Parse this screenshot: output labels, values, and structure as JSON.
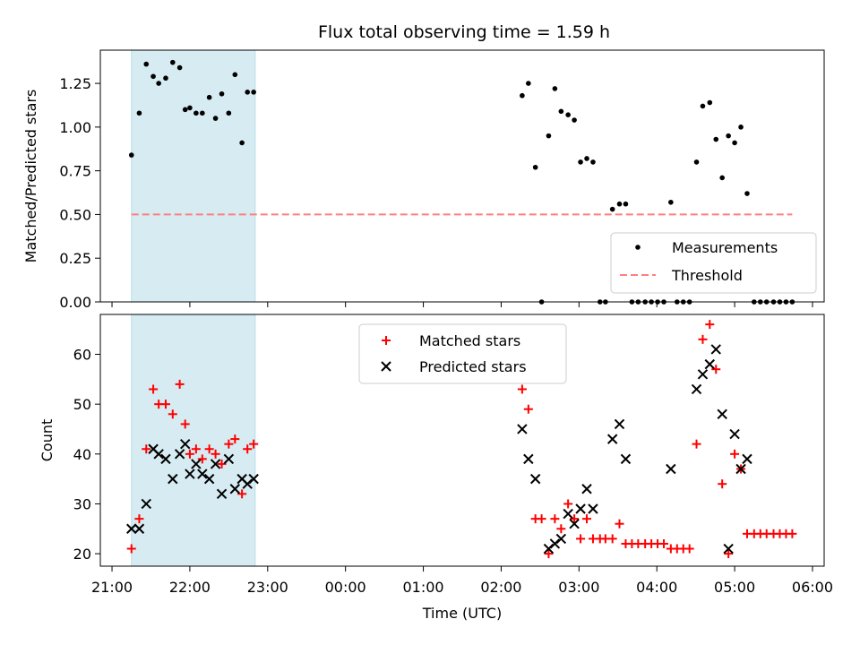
{
  "chart_data": {
    "title": "Flux total observing time = 1.59 h",
    "x_axis": {
      "label": "Time (UTC)",
      "unit": "hours since 21:00",
      "lim": [
        -0.15,
        9.15
      ],
      "ticks": [
        0,
        1,
        2,
        3,
        4,
        5,
        6,
        7,
        8,
        9
      ],
      "tick_labels": [
        "21:00",
        "22:00",
        "23:00",
        "00:00",
        "01:00",
        "02:00",
        "03:00",
        "04:00",
        "05:00",
        "06:00"
      ]
    },
    "shaded_interval": {
      "x0": 0.25,
      "x1": 1.84,
      "color": "#add8e6"
    },
    "subplots": [
      {
        "type": "scatter",
        "ylabel": "Matched/Predicted stars",
        "ylim": [
          0,
          1.44
        ],
        "yticks": [
          0,
          0.25,
          0.5,
          0.75,
          1.0,
          1.25
        ],
        "ytick_labels": [
          "0.00",
          "0.25",
          "0.50",
          "0.75",
          "1.00",
          "1.25"
        ],
        "legend": {
          "placement": "lower-right",
          "entries": [
            "Measurements",
            "Threshold"
          ]
        },
        "series": [
          {
            "name": "Measurements",
            "marker": "dot",
            "color": "#000000",
            "points": [
              [
                0.25,
                0.84
              ],
              [
                0.35,
                1.08
              ],
              [
                0.44,
                1.36
              ],
              [
                0.53,
                1.29
              ],
              [
                0.6,
                1.25
              ],
              [
                0.69,
                1.28
              ],
              [
                0.78,
                1.37
              ],
              [
                0.87,
                1.34
              ],
              [
                0.94,
                1.1
              ],
              [
                1.0,
                1.11
              ],
              [
                1.08,
                1.08
              ],
              [
                1.16,
                1.08
              ],
              [
                1.25,
                1.17
              ],
              [
                1.33,
                1.05
              ],
              [
                1.41,
                1.19
              ],
              [
                1.5,
                1.08
              ],
              [
                1.58,
                1.3
              ],
              [
                1.67,
                0.91
              ],
              [
                1.74,
                1.2
              ],
              [
                1.82,
                1.2
              ],
              [
                5.27,
                1.18
              ],
              [
                5.35,
                1.25
              ],
              [
                5.44,
                0.77
              ],
              [
                5.52,
                0.0
              ],
              [
                5.61,
                0.95
              ],
              [
                5.69,
                1.22
              ],
              [
                5.77,
                1.09
              ],
              [
                5.86,
                1.07
              ],
              [
                5.94,
                1.04
              ],
              [
                6.02,
                0.8
              ],
              [
                6.1,
                0.82
              ],
              [
                6.18,
                0.8
              ],
              [
                6.27,
                0.0
              ],
              [
                6.34,
                0.0
              ],
              [
                6.43,
                0.53
              ],
              [
                6.52,
                0.56
              ],
              [
                6.6,
                0.56
              ],
              [
                6.68,
                0.0
              ],
              [
                6.76,
                0.0
              ],
              [
                6.85,
                0.0
              ],
              [
                6.93,
                0.0
              ],
              [
                7.01,
                0.0
              ],
              [
                7.09,
                0.0
              ],
              [
                7.18,
                0.57
              ],
              [
                7.26,
                0.0
              ],
              [
                7.34,
                0.0
              ],
              [
                7.42,
                0.0
              ],
              [
                7.51,
                0.8
              ],
              [
                7.59,
                1.12
              ],
              [
                7.68,
                1.14
              ],
              [
                7.76,
                0.93
              ],
              [
                7.84,
                0.71
              ],
              [
                7.92,
                0.95
              ],
              [
                8.0,
                0.91
              ],
              [
                8.08,
                1.0
              ],
              [
                8.16,
                0.62
              ],
              [
                8.25,
                0.0
              ],
              [
                8.33,
                0.0
              ],
              [
                8.41,
                0.0
              ],
              [
                8.5,
                0.0
              ],
              [
                8.58,
                0.0
              ],
              [
                8.66,
                0.0
              ],
              [
                8.74,
                0.0
              ]
            ]
          },
          {
            "name": "Threshold",
            "type": "line",
            "style": "dashed",
            "color": "#ff7f7f",
            "points": [
              [
                0.25,
                0.5
              ],
              [
                8.74,
                0.5
              ]
            ]
          }
        ]
      },
      {
        "type": "scatter",
        "ylabel": "Count",
        "ylim": [
          17.5,
          68
        ],
        "yticks": [
          20,
          30,
          40,
          50,
          60
        ],
        "ytick_labels": [
          "20",
          "30",
          "40",
          "50",
          "60"
        ],
        "legend": {
          "placement": "upper-center",
          "entries": [
            "Matched stars",
            "Predicted stars"
          ]
        },
        "series": [
          {
            "name": "Matched stars",
            "marker": "plus",
            "color": "#ff0000",
            "points": [
              [
                0.25,
                21
              ],
              [
                0.35,
                27
              ],
              [
                0.44,
                41
              ],
              [
                0.53,
                53
              ],
              [
                0.6,
                50
              ],
              [
                0.69,
                50
              ],
              [
                0.78,
                48
              ],
              [
                0.87,
                54
              ],
              [
                0.94,
                46
              ],
              [
                1.0,
                40
              ],
              [
                1.08,
                41
              ],
              [
                1.16,
                39
              ],
              [
                1.25,
                41
              ],
              [
                1.33,
                40
              ],
              [
                1.41,
                38
              ],
              [
                1.5,
                42
              ],
              [
                1.58,
                43
              ],
              [
                1.67,
                32
              ],
              [
                1.74,
                41
              ],
              [
                1.82,
                42
              ],
              [
                5.27,
                53
              ],
              [
                5.35,
                49
              ],
              [
                5.44,
                27
              ],
              [
                5.52,
                27
              ],
              [
                5.61,
                20
              ],
              [
                5.69,
                27
              ],
              [
                5.77,
                25
              ],
              [
                5.86,
                30
              ],
              [
                5.94,
                27
              ],
              [
                6.02,
                23
              ],
              [
                6.1,
                27
              ],
              [
                6.18,
                23
              ],
              [
                6.27,
                23
              ],
              [
                6.34,
                23
              ],
              [
                6.43,
                23
              ],
              [
                6.52,
                26
              ],
              [
                6.6,
                22
              ],
              [
                6.68,
                22
              ],
              [
                6.76,
                22
              ],
              [
                6.85,
                22
              ],
              [
                6.93,
                22
              ],
              [
                7.01,
                22
              ],
              [
                7.09,
                22
              ],
              [
                7.18,
                21
              ],
              [
                7.26,
                21
              ],
              [
                7.34,
                21
              ],
              [
                7.42,
                21
              ],
              [
                7.51,
                42
              ],
              [
                7.59,
                63
              ],
              [
                7.68,
                66
              ],
              [
                7.76,
                57
              ],
              [
                7.84,
                34
              ],
              [
                7.92,
                20
              ],
              [
                8.0,
                40
              ],
              [
                8.08,
                37
              ],
              [
                8.16,
                24
              ],
              [
                8.25,
                24
              ],
              [
                8.33,
                24
              ],
              [
                8.41,
                24
              ],
              [
                8.5,
                24
              ],
              [
                8.58,
                24
              ],
              [
                8.66,
                24
              ],
              [
                8.74,
                24
              ]
            ]
          },
          {
            "name": "Predicted stars",
            "marker": "x",
            "color": "#000000",
            "points": [
              [
                0.25,
                25
              ],
              [
                0.35,
                25
              ],
              [
                0.44,
                30
              ],
              [
                0.53,
                41
              ],
              [
                0.6,
                40
              ],
              [
                0.69,
                39
              ],
              [
                0.78,
                35
              ],
              [
                0.87,
                40
              ],
              [
                0.94,
                42
              ],
              [
                1.0,
                36
              ],
              [
                1.08,
                38
              ],
              [
                1.16,
                36
              ],
              [
                1.25,
                35
              ],
              [
                1.33,
                38
              ],
              [
                1.41,
                32
              ],
              [
                1.5,
                39
              ],
              [
                1.58,
                33
              ],
              [
                1.67,
                35
              ],
              [
                1.74,
                34
              ],
              [
                1.82,
                35
              ],
              [
                5.27,
                45
              ],
              [
                5.35,
                39
              ],
              [
                5.44,
                35
              ],
              [
                5.61,
                21
              ],
              [
                5.69,
                22
              ],
              [
                5.77,
                23
              ],
              [
                5.86,
                28
              ],
              [
                5.94,
                26
              ],
              [
                6.02,
                29
              ],
              [
                6.1,
                33
              ],
              [
                6.18,
                29
              ],
              [
                6.43,
                43
              ],
              [
                6.52,
                46
              ],
              [
                6.6,
                39
              ],
              [
                7.18,
                37
              ],
              [
                7.51,
                53
              ],
              [
                7.59,
                56
              ],
              [
                7.68,
                58
              ],
              [
                7.76,
                61
              ],
              [
                7.84,
                48
              ],
              [
                7.92,
                21
              ],
              [
                8.0,
                44
              ],
              [
                8.08,
                37
              ],
              [
                8.16,
                39
              ]
            ]
          }
        ]
      }
    ]
  }
}
